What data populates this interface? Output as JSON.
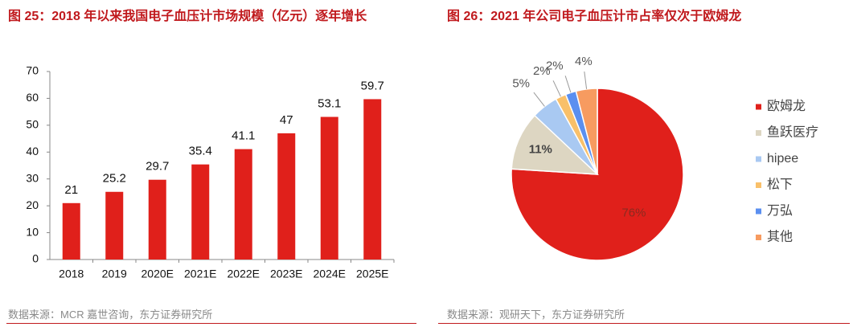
{
  "chart_data": [
    {
      "type": "bar",
      "title": "图 25：2018 年以来我国电子血压计市场规模（亿元）逐年增长",
      "categories": [
        "2018",
        "2019",
        "2020E",
        "2021E",
        "2022E",
        "2023E",
        "2024E",
        "2025E"
      ],
      "values": [
        21,
        25.2,
        29.7,
        35.4,
        41.1,
        47,
        53.1,
        59.7
      ],
      "color": "#e0201b",
      "ylim": [
        0,
        70
      ],
      "yticks": [
        0,
        10,
        20,
        30,
        40,
        50,
        60,
        70
      ],
      "source": "数据来源：MCR 嘉世咨询，东方证券研究所"
    },
    {
      "type": "pie",
      "title": "图 26：2021 年公司电子血压计市占率仅次于欧姆龙",
      "categories": [
        "欧姆龙",
        "鱼跃医疗",
        "hipee",
        "松下",
        "万弘",
        "其他"
      ],
      "values": [
        76,
        11,
        5,
        2,
        2,
        4
      ],
      "value_labels": [
        "76%",
        "11%",
        "5%",
        "2%",
        "2%",
        "4%"
      ],
      "colors": [
        "#e0201b",
        "#ddd6c2",
        "#a9c9f2",
        "#f9c06a",
        "#5b8ff0",
        "#f79b60"
      ],
      "legend": "right",
      "source": "数据来源：观研天下，东方证券研究所"
    }
  ]
}
